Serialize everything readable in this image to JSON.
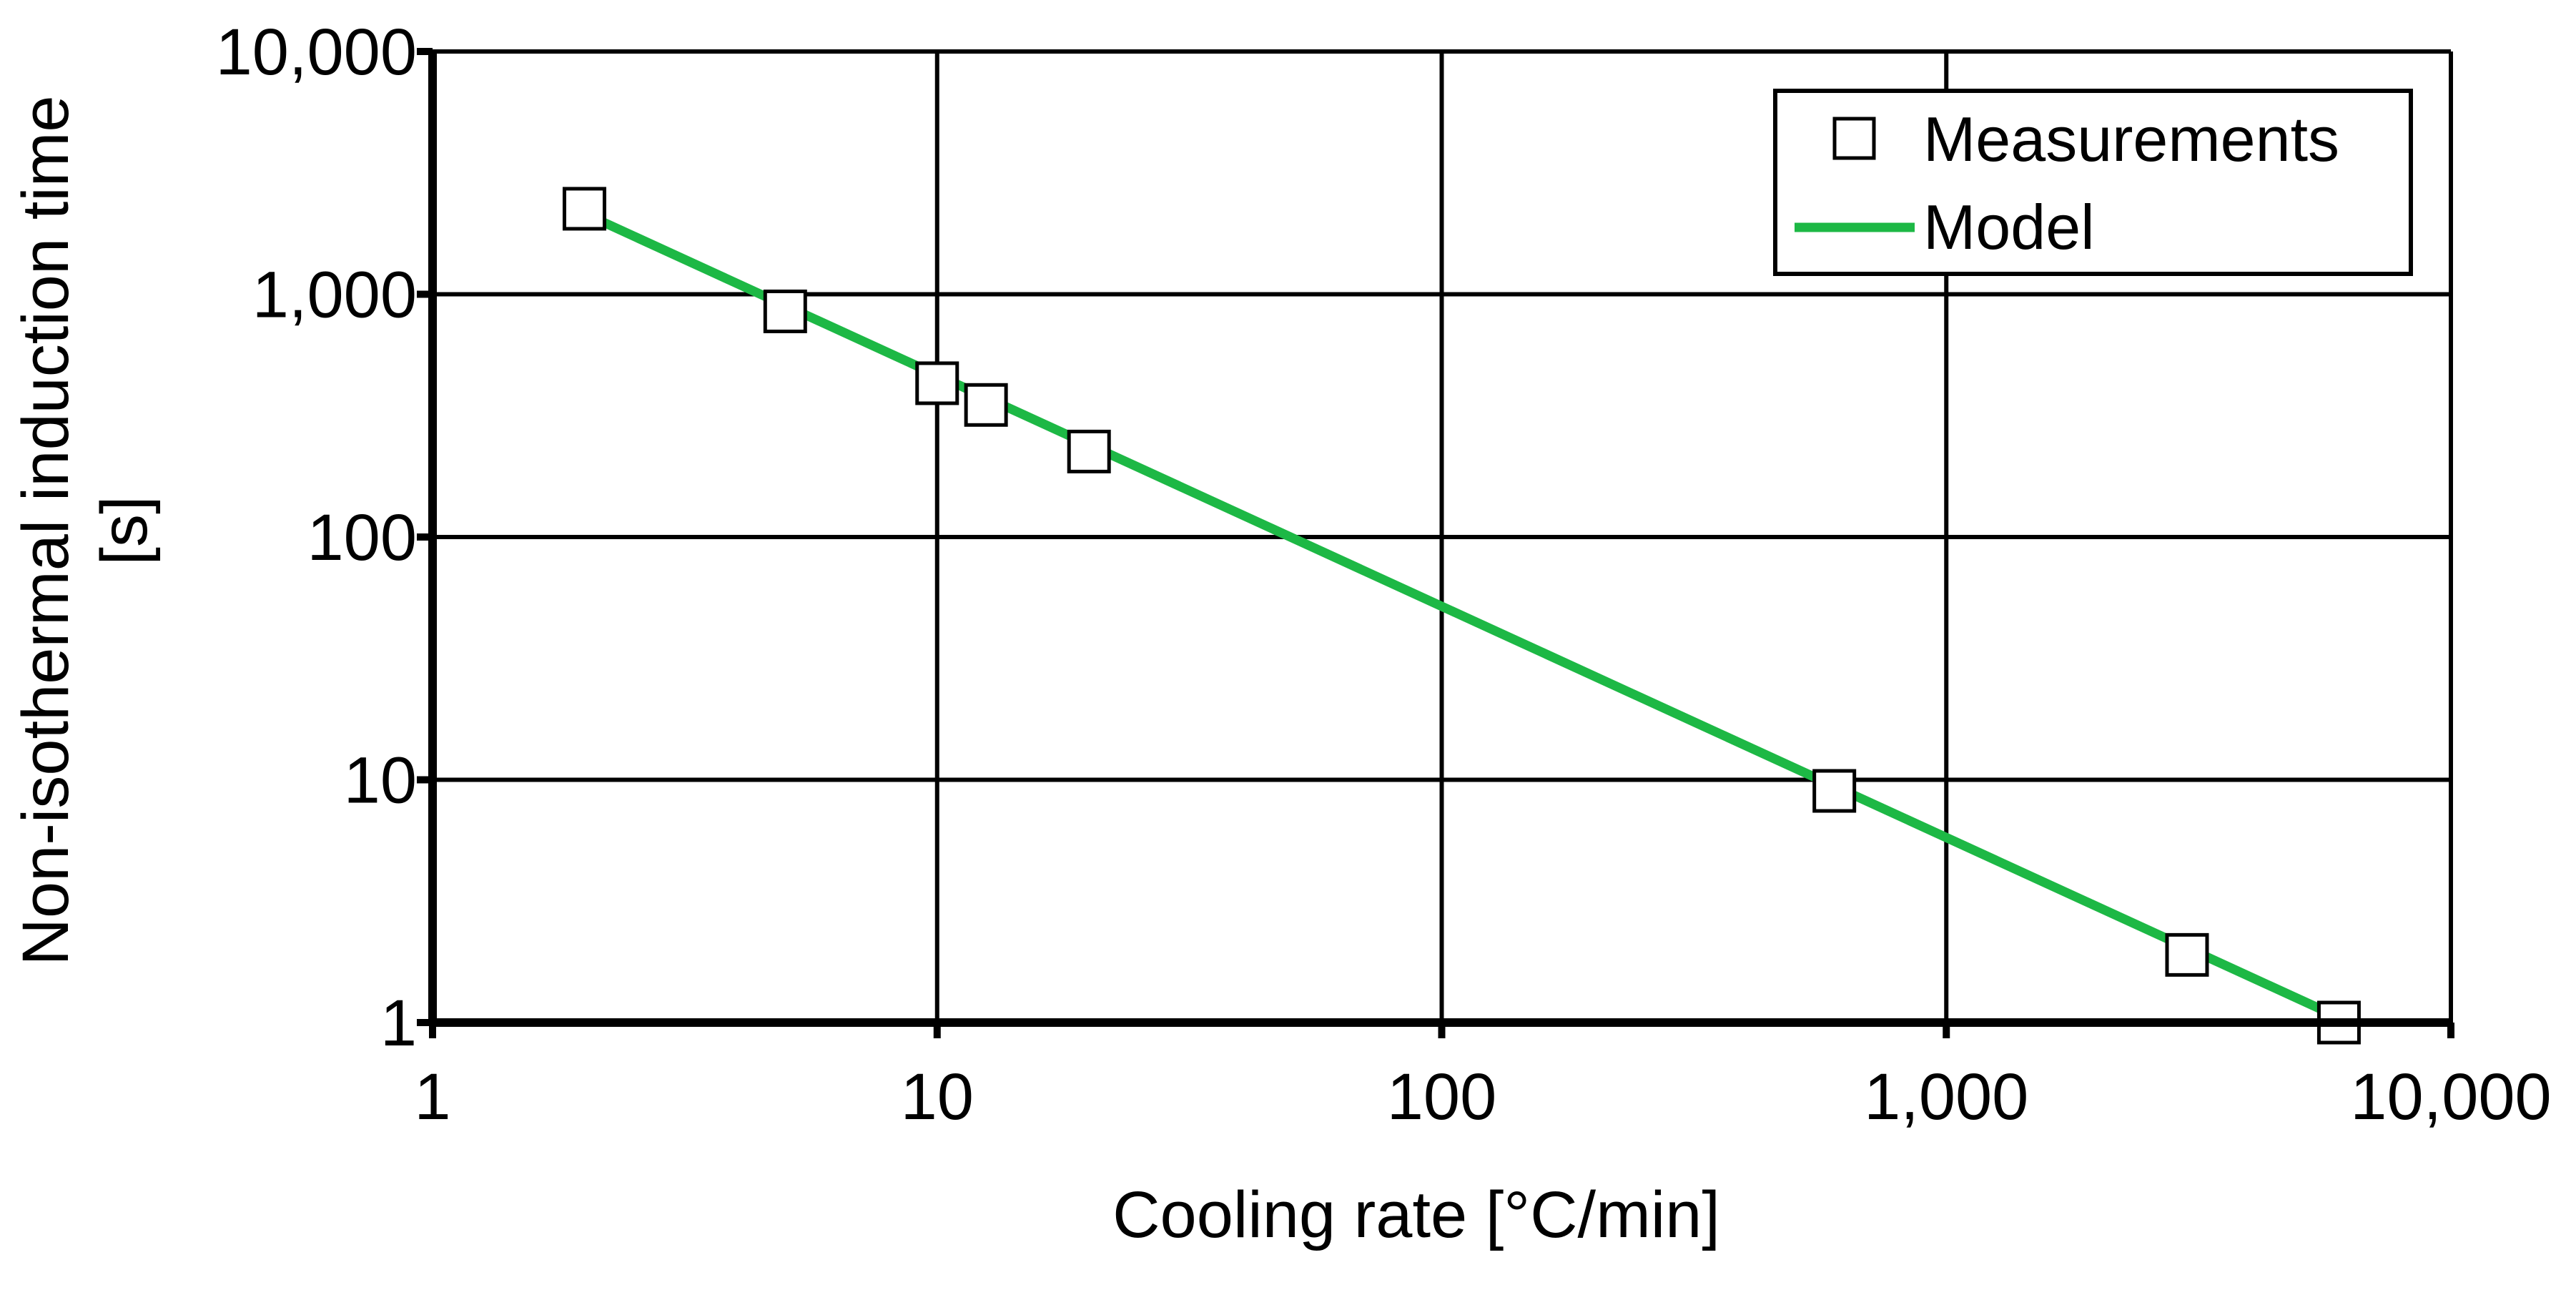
{
  "chart_data": {
    "type": "scatter",
    "title": "",
    "xlabel": "Cooling rate   [°C/min]",
    "ylabel_lines": [
      "Non-isothermal induction time",
      "[s]"
    ],
    "xscale": "log",
    "yscale": "log",
    "xlim": [
      1,
      10000
    ],
    "ylim": [
      1,
      10000
    ],
    "grid": true,
    "x_ticks": [
      1,
      10,
      100,
      1000,
      10000
    ],
    "x_tick_labels": [
      "1",
      "10",
      "100",
      "1,000",
      "10,000"
    ],
    "y_ticks": [
      1,
      10,
      100,
      1000,
      10000
    ],
    "y_tick_labels": [
      "1",
      "10",
      "100",
      "1,000",
      "10,000"
    ],
    "legend_position": "top-right",
    "series": [
      {
        "name": "Measurements",
        "kind": "markers",
        "marker": "square",
        "color": "#000000",
        "fill": "#ffffff",
        "x": [
          2,
          5,
          10,
          12.5,
          20,
          600,
          3000,
          6000
        ],
        "y": [
          2250,
          850,
          430,
          350,
          225,
          9,
          1.9,
          1.0
        ]
      },
      {
        "name": "Model",
        "kind": "line",
        "color": "#1db845",
        "x": [
          2,
          6000
        ],
        "y": [
          2150,
          1.05
        ]
      }
    ]
  }
}
